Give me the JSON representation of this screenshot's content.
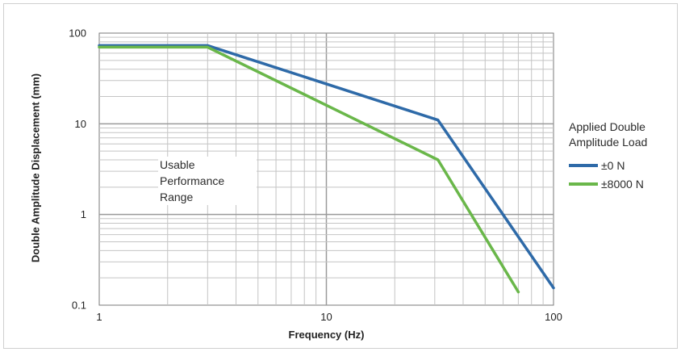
{
  "chart_data": {
    "type": "line",
    "title": "",
    "xlabel": "Frequency (Hz)",
    "ylabel": "Double Amplitude Displacement (mm)",
    "x_scale": "log",
    "y_scale": "log",
    "xlim": [
      1,
      100
    ],
    "ylim": [
      0.1,
      100
    ],
    "x_tick_labels": [
      "1",
      "10",
      "100"
    ],
    "y_tick_labels": [
      "0.1",
      "1",
      "10",
      "100"
    ],
    "grid": true,
    "legend_title": [
      "Applied Double",
      "Amplitude Load"
    ],
    "legend_position": "right",
    "series": [
      {
        "name": "±0 N",
        "color": "#2e6aa8",
        "points": [
          [
            1,
            73
          ],
          [
            3,
            73
          ],
          [
            31,
            11
          ],
          [
            100,
            0.155
          ]
        ]
      },
      {
        "name": "±8000 N",
        "color": "#6ab74a",
        "points": [
          [
            1,
            70
          ],
          [
            3,
            70
          ],
          [
            31,
            4
          ],
          [
            70,
            0.14
          ]
        ]
      }
    ],
    "annotation": [
      "Usable",
      "Performance",
      "Range"
    ]
  }
}
